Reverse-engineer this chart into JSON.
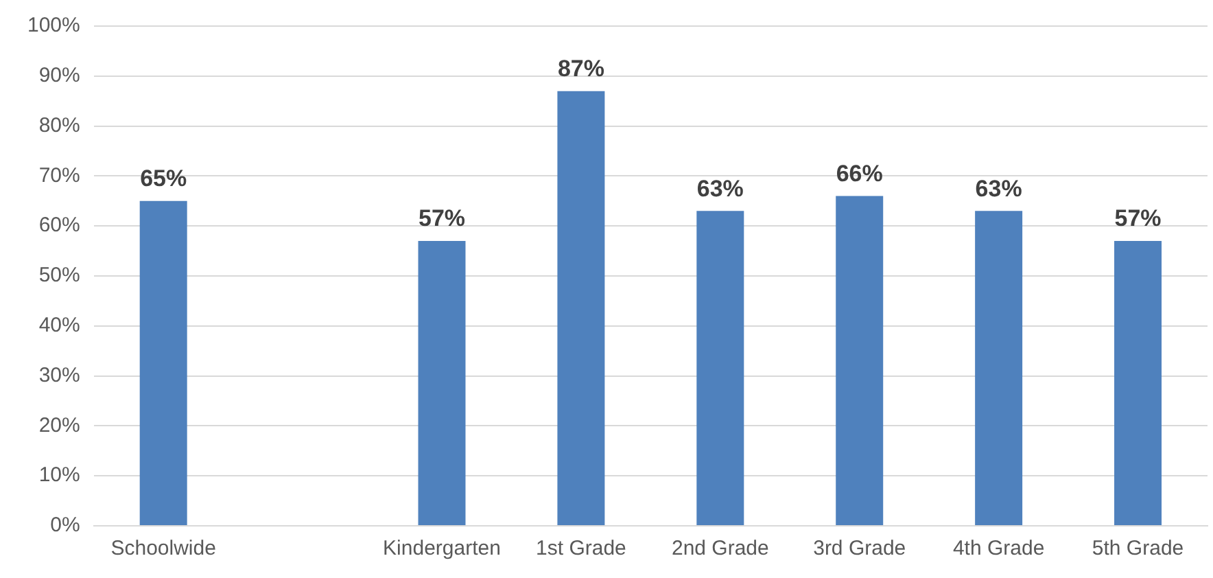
{
  "chart_data": {
    "type": "bar",
    "categories": [
      "Schoolwide",
      null,
      "Kindergarten",
      "1st Grade",
      "2nd Grade",
      "3rd Grade",
      "4th Grade",
      "5th Grade"
    ],
    "values": [
      65,
      null,
      57,
      87,
      63,
      66,
      63,
      57
    ],
    "value_labels": [
      "65%",
      null,
      "57%",
      "87%",
      "63%",
      "66%",
      "63%",
      "57%"
    ],
    "color": "#4f81bd",
    "ylim": [
      0,
      100
    ],
    "yticks": [
      {
        "value": 0,
        "label": "0%"
      },
      {
        "value": 10,
        "label": "10%"
      },
      {
        "value": 20,
        "label": "20%"
      },
      {
        "value": 30,
        "label": "30%"
      },
      {
        "value": 40,
        "label": "40%"
      },
      {
        "value": 50,
        "label": "50%"
      },
      {
        "value": 60,
        "label": "60%"
      },
      {
        "value": 70,
        "label": "70%"
      },
      {
        "value": 80,
        "label": "80%"
      },
      {
        "value": 90,
        "label": "90%"
      },
      {
        "value": 100,
        "label": "100%"
      }
    ],
    "grid": "y",
    "legend": false
  }
}
